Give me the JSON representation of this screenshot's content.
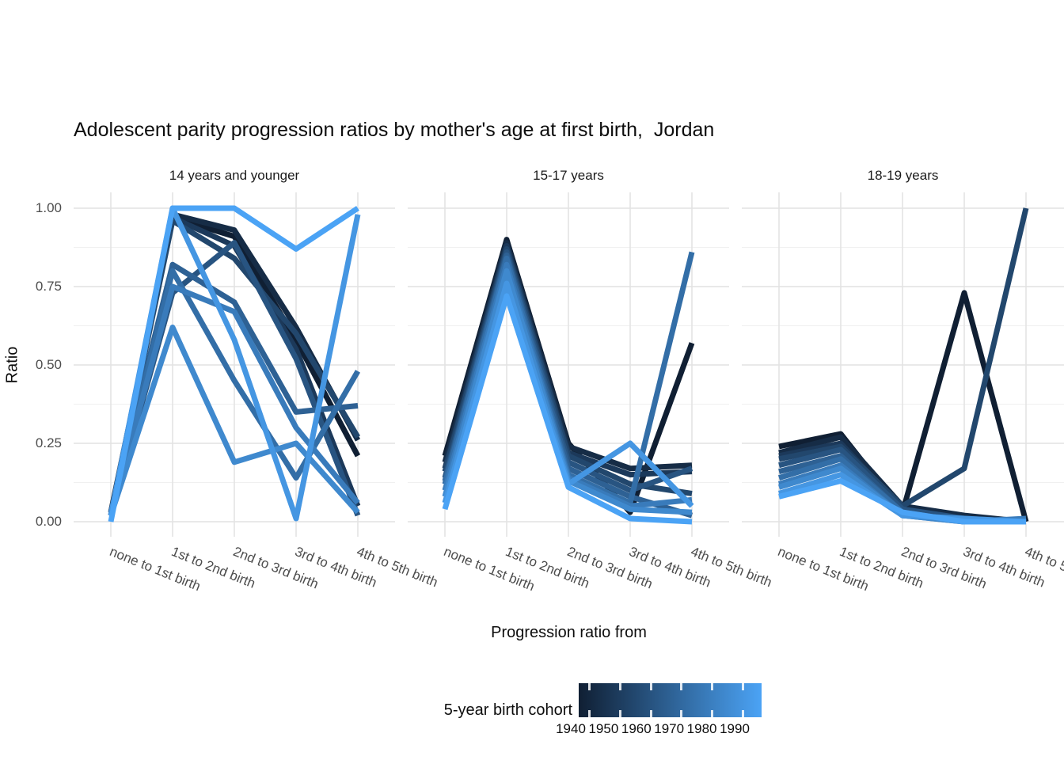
{
  "title": "Adolescent parity progression ratios by mother's age at first birth,  Jordan",
  "y_axis": {
    "label": "Ratio",
    "ticks": [
      "1.00",
      "0.75",
      "0.50",
      "0.25",
      "0.00"
    ]
  },
  "x_axis": {
    "label": "Progression ratio from",
    "categories": [
      "none to 1st birth",
      "1st to 2nd birth",
      "2nd to 3rd birth",
      "3rd to 4th birth",
      "4th to 5th birth"
    ]
  },
  "legend": {
    "title": "5-year birth cohort",
    "tick_labels": [
      "1940",
      "1950",
      "1960",
      "1970",
      "1980",
      "1990"
    ],
    "gradient_start": "#101f33",
    "gradient_end": "#4ba3f5"
  },
  "colors": {
    "grid_major": "#e2e2e2",
    "grid_minor": "#f0f0f0",
    "axis_text": "#4d4d4d",
    "background": "#ffffff"
  },
  "chart_data": {
    "type": "line",
    "title": "Adolescent parity progression ratios by mother's age at first birth,  Jordan",
    "xlabel": "Progression ratio from",
    "ylabel": "Ratio",
    "ylim": [
      0,
      1
    ],
    "y_ticks": [
      0,
      0.25,
      0.5,
      0.75,
      1.0
    ],
    "grid": true,
    "legend_position": "bottom",
    "color_scale": {
      "label": "5-year birth cohort",
      "from_year": 1940,
      "to_year": 1990
    },
    "categories": [
      "none to 1st birth",
      "1st to 2nd birth",
      "2nd to 3rd birth",
      "3rd to 4th birth",
      "4th to 5th birth"
    ],
    "facets": [
      {
        "label": "14 years and younger",
        "series": [
          {
            "name": "1940",
            "color": "#101f33",
            "values": [
              0.03,
              0.97,
              0.91,
              0.58,
              0.21
            ]
          },
          {
            "name": "1945",
            "color": "#162c46",
            "values": [
              0.02,
              0.98,
              0.93,
              0.62,
              0.26
            ]
          },
          {
            "name": "1950",
            "color": "#1c395a",
            "values": [
              0.02,
              0.97,
              0.88,
              0.55,
              0.05
            ]
          },
          {
            "name": "1955",
            "color": "#22476d",
            "values": [
              0.02,
              0.96,
              0.84,
              0.6,
              0.27
            ]
          },
          {
            "name": "1960",
            "color": "#285481",
            "values": [
              0.02,
              0.73,
              0.89,
              0.52,
              0.02
            ]
          },
          {
            "name": "1965",
            "color": "#2e6194",
            "values": [
              0.03,
              0.82,
              0.7,
              0.35,
              0.37
            ]
          },
          {
            "name": "1970",
            "color": "#336ea7",
            "values": [
              0.02,
              0.8,
              0.45,
              0.14,
              0.48
            ]
          },
          {
            "name": "1975",
            "color": "#397bbb",
            "values": [
              0.02,
              0.75,
              0.67,
              0.3,
              0.06
            ]
          },
          {
            "name": "1980",
            "color": "#3f89ce",
            "values": [
              0.02,
              0.62,
              0.19,
              0.25,
              0.03
            ]
          },
          {
            "name": "1985",
            "color": "#4596e2",
            "values": [
              0.02,
              1.0,
              0.58,
              0.01,
              0.98
            ]
          },
          {
            "name": "1990",
            "color": "#4ba3f5",
            "values": [
              0.0,
              1.0,
              1.0,
              0.87,
              1.0
            ]
          }
        ]
      },
      {
        "label": "15-17 years",
        "series": [
          {
            "name": "1940",
            "color": "#101f33",
            "values": [
              0.21,
              0.9,
              0.25,
              0.03,
              0.57
            ]
          },
          {
            "name": "1945",
            "color": "#162c46",
            "values": [
              0.19,
              0.89,
              0.24,
              0.17,
              0.18
            ]
          },
          {
            "name": "1950",
            "color": "#1c395a",
            "values": [
              0.17,
              0.88,
              0.22,
              0.15,
              0.16
            ]
          },
          {
            "name": "1955",
            "color": "#22476d",
            "values": [
              0.16,
              0.87,
              0.21,
              0.12,
              0.09
            ]
          },
          {
            "name": "1960",
            "color": "#285481",
            "values": [
              0.14,
              0.86,
              0.19,
              0.1,
              0.17
            ]
          },
          {
            "name": "1965",
            "color": "#2e6194",
            "values": [
              0.13,
              0.85,
              0.17,
              0.08,
              0.02
            ]
          },
          {
            "name": "1970",
            "color": "#336ea7",
            "values": [
              0.12,
              0.84,
              0.15,
              0.06,
              0.86
            ]
          },
          {
            "name": "1975",
            "color": "#397bbb",
            "values": [
              0.1,
              0.82,
              0.14,
              0.05,
              0.07
            ]
          },
          {
            "name": "1980",
            "color": "#3f89ce",
            "values": [
              0.08,
              0.8,
              0.13,
              0.04,
              0.03
            ]
          },
          {
            "name": "1985",
            "color": "#4596e2",
            "values": [
              0.06,
              0.76,
              0.12,
              0.25,
              0.05
            ]
          },
          {
            "name": "1990",
            "color": "#4ba3f5",
            "values": [
              0.04,
              0.72,
              0.11,
              0.01,
              0.0
            ]
          }
        ]
      },
      {
        "label": "18-19 years",
        "series": [
          {
            "name": "1940",
            "color": "#101f33",
            "values": [
              0.24,
              0.28,
              0.03,
              0.73,
              0.0
            ]
          },
          {
            "name": "1945",
            "color": "#162c46",
            "values": [
              0.22,
              0.27,
              0.05,
              0.02,
              0.0
            ]
          },
          {
            "name": "1950",
            "color": "#1c395a",
            "values": [
              0.21,
              0.25,
              0.04,
              0.01,
              0.0
            ]
          },
          {
            "name": "1955",
            "color": "#22476d",
            "values": [
              0.2,
              0.24,
              0.05,
              0.17,
              1.0
            ]
          },
          {
            "name": "1960",
            "color": "#285481",
            "values": [
              0.18,
              0.23,
              0.04,
              0.01,
              0.0
            ]
          },
          {
            "name": "1965",
            "color": "#2e6194",
            "values": [
              0.16,
              0.21,
              0.03,
              0.0,
              0.0
            ]
          },
          {
            "name": "1970",
            "color": "#336ea7",
            "values": [
              0.14,
              0.2,
              0.03,
              0.0,
              0.0
            ]
          },
          {
            "name": "1975",
            "color": "#397bbb",
            "values": [
              0.12,
              0.18,
              0.02,
              0.0,
              0.01
            ]
          },
          {
            "name": "1980",
            "color": "#3f89ce",
            "values": [
              0.11,
              0.17,
              0.02,
              0.0,
              0.0
            ]
          },
          {
            "name": "1985",
            "color": "#4596e2",
            "values": [
              0.09,
              0.15,
              0.02,
              0.01,
              0.0
            ]
          },
          {
            "name": "1990",
            "color": "#4ba3f5",
            "values": [
              0.08,
              0.13,
              0.03,
              0.0,
              0.0
            ]
          }
        ]
      }
    ]
  }
}
